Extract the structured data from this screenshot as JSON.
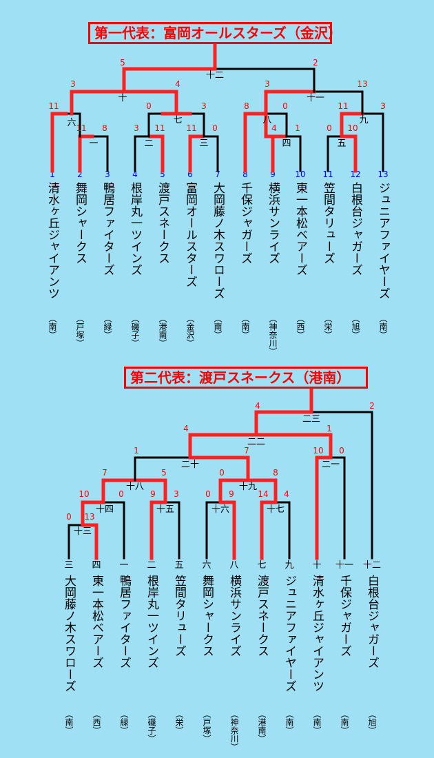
{
  "colors": {
    "background": "#a0e0f4",
    "win": "#ff2020",
    "line": "#000000",
    "score": "#ff0000",
    "num": "#0000ff",
    "text": "#000000"
  },
  "bracket1": {
    "title": "第一代表：富岡オールスターズ（金沢）",
    "teams": [
      {
        "num": "1",
        "name": "清水ヶ丘ジャイアンツ",
        "area": "（南）"
      },
      {
        "num": "2",
        "name": "舞岡シャークス",
        "area": "（戸塚）"
      },
      {
        "num": "3",
        "name": "鴨居ファイターズ",
        "area": "（緑）"
      },
      {
        "num": "4",
        "name": "根岸丸一ツインズ",
        "area": "（磯子）"
      },
      {
        "num": "5",
        "name": "渡戸スネークス",
        "area": "（港南）"
      },
      {
        "num": "6",
        "name": "富岡オールスターズ",
        "area": "（金沢）"
      },
      {
        "num": "7",
        "name": "大岡藤ノ木スワローズ",
        "area": "（南）"
      },
      {
        "num": "8",
        "name": "千保ジャガーズ",
        "area": "（南）"
      },
      {
        "num": "9",
        "name": "横浜サンライズ",
        "area": "（神奈川）"
      },
      {
        "num": "10",
        "name": "東一本松ベアーズ",
        "area": "（西）"
      },
      {
        "num": "11",
        "name": "笠間タリューズ",
        "area": "（栄）"
      },
      {
        "num": "12",
        "name": "白根台ジャガーズ",
        "area": "（旭）"
      },
      {
        "num": "13",
        "name": "ジュニアファイヤーズ",
        "area": "（南）"
      }
    ],
    "games": [
      "一",
      "二",
      "三",
      "四",
      "五",
      "六",
      "七",
      "八",
      "九",
      "十",
      "十一",
      "十二"
    ],
    "scores": [
      "11",
      "8",
      "3",
      "11",
      "11",
      "0",
      "4",
      "1",
      "0",
      "10",
      "11",
      "0",
      "0",
      "3",
      "8",
      "0",
      "11",
      "3",
      "3",
      "4",
      "3",
      "13",
      "5",
      "2"
    ]
  },
  "bracket2": {
    "title": "第二代表：渡戸スネークス（港南）",
    "teams": [
      {
        "num": "三",
        "name": "大岡藤ノ木スワローズ",
        "area": "（南）"
      },
      {
        "num": "四",
        "name": "東一本松ベアーズ",
        "area": "（西）"
      },
      {
        "num": "一",
        "name": "鴨居ファイターズ",
        "area": "（緑）"
      },
      {
        "num": "二",
        "name": "根岸丸一ツインズ",
        "area": "（磯子）"
      },
      {
        "num": "五",
        "name": "笠間タリューズ",
        "area": "（栄）"
      },
      {
        "num": "六",
        "name": "舞岡シャークス",
        "area": "（戸塚）"
      },
      {
        "num": "八",
        "name": "横浜サンライズ",
        "area": "（神奈川）"
      },
      {
        "num": "七",
        "name": "渡戸スネークス",
        "area": "（港南）"
      },
      {
        "num": "九",
        "name": "ジュニアファイヤーズ",
        "area": "（南）"
      },
      {
        "num": "十",
        "name": "清水ヶ丘ジャイアンツ",
        "area": "（南）"
      },
      {
        "num": "十一",
        "name": "千保ジャガーズ",
        "area": "（南）"
      },
      {
        "num": "十二",
        "name": "白根台ジャガーズ",
        "area": "（旭）"
      }
    ],
    "games": [
      "十三",
      "十四",
      "十五",
      "十六",
      "十七",
      "十八",
      "十九",
      "二十",
      "二一",
      "二二",
      "二三"
    ],
    "scores": [
      "0",
      "13",
      "10",
      "0",
      "9",
      "3",
      "0",
      "9",
      "14",
      "4",
      "7",
      "5",
      "0",
      "8",
      "1",
      "7",
      "10",
      "0",
      "4",
      "1",
      "4",
      "2"
    ]
  }
}
